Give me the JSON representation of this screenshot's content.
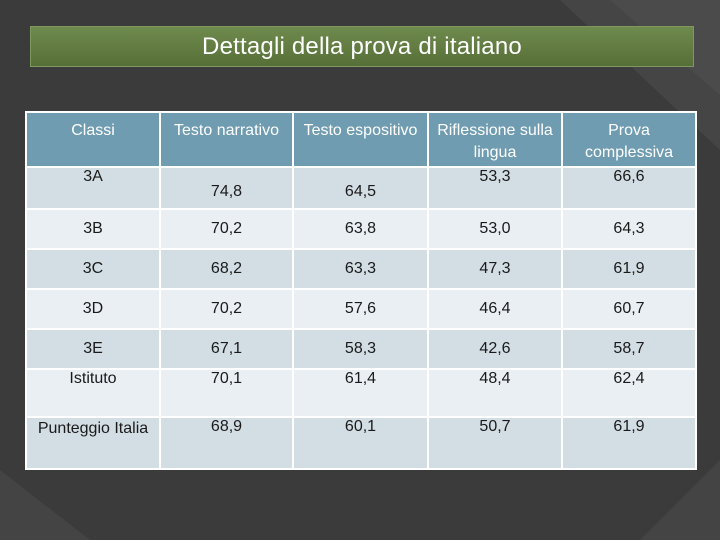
{
  "title": "Dettagli della prova di italiano",
  "headers": [
    "Classi",
    "Testo narrativo",
    "Testo espositivo",
    "Riflessione sulla lingua",
    "Prova complessiva"
  ],
  "rows": [
    {
      "label": "3A",
      "values": [
        "74,8",
        "64,5",
        "53,3",
        "66,6"
      ]
    },
    {
      "label": "3B",
      "values": [
        "70,2",
        "63,8",
        "53,0",
        "64,3"
      ]
    },
    {
      "label": "3C",
      "values": [
        "68,2",
        "63,3",
        "47,3",
        "61,9"
      ]
    },
    {
      "label": "3D",
      "values": [
        "70,2",
        "57,6",
        "46,4",
        "60,7"
      ]
    },
    {
      "label": "3E",
      "values": [
        "67,1",
        "58,3",
        "42,6",
        "58,7"
      ]
    },
    {
      "label": "Istituto",
      "values": [
        "70,1",
        "61,4",
        "48,4",
        "62,4"
      ]
    },
    {
      "label": "Punteggio Italia",
      "values": [
        "68,9",
        "60,1",
        "50,7",
        "61,9"
      ]
    }
  ]
}
